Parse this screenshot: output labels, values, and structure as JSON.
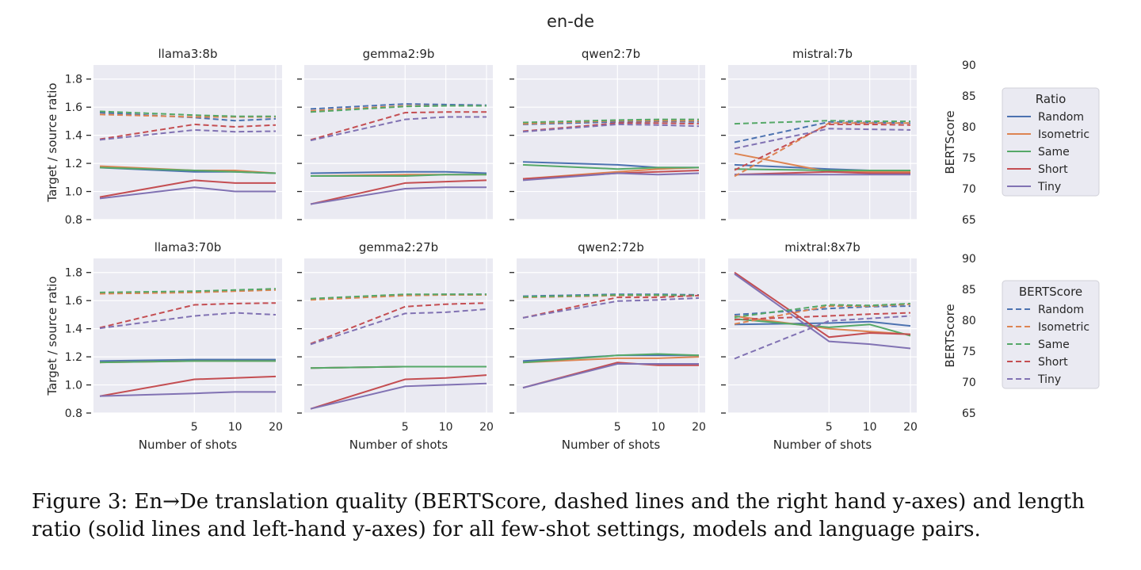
{
  "figure": {
    "suptitle": "en-de",
    "caption": "Figure 3: En→De translation quality (BERTScore, dashed lines and the right hand y-axes) and length ratio (solid lines and left-hand y-axes) for all few-shot settings, models and language pairs.",
    "legend_ratio_title": "Ratio",
    "legend_bert_title": "BERTScore",
    "legend_entries": [
      "Random",
      "Isometric",
      "Same",
      "Short",
      "Tiny"
    ],
    "colors": {
      "Random": "#4c72b0",
      "Isometric": "#dd8452",
      "Same": "#55a868",
      "Short": "#c44e52",
      "Tiny": "#8172b3"
    }
  },
  "chart_data": [
    {
      "type": "line",
      "title": "llama3:8b",
      "xlabel": "",
      "ylabel": "Target / source ratio",
      "y2label": "",
      "x": [
        1,
        5,
        10,
        20
      ],
      "xticks": [
        5,
        10,
        20
      ],
      "xscale": "log",
      "ylim": [
        0.8,
        1.9
      ],
      "yticks": [
        0.8,
        1.0,
        1.2,
        1.4,
        1.6,
        1.8
      ],
      "y2lim": [
        65,
        90
      ],
      "y2ticks": [],
      "series": [
        {
          "name": "Random",
          "axis": "ratio",
          "values": [
            1.17,
            1.14,
            1.14,
            1.13
          ]
        },
        {
          "name": "Isometric",
          "axis": "ratio",
          "values": [
            1.18,
            1.15,
            1.15,
            1.13
          ]
        },
        {
          "name": "Same",
          "axis": "ratio",
          "values": [
            1.17,
            1.15,
            1.14,
            1.13
          ]
        },
        {
          "name": "Short",
          "axis": "ratio",
          "values": [
            0.96,
            1.08,
            1.06,
            1.06
          ]
        },
        {
          "name": "Tiny",
          "axis": "ratio",
          "values": [
            0.95,
            1.03,
            1.0,
            1.0
          ]
        },
        {
          "name": "Random",
          "axis": "bert",
          "values": [
            82.3,
            81.5,
            81.0,
            81.3
          ]
        },
        {
          "name": "Isometric",
          "axis": "bert",
          "values": [
            82.0,
            81.6,
            81.6,
            81.6
          ]
        },
        {
          "name": "Same",
          "axis": "bert",
          "values": [
            82.5,
            81.9,
            81.7,
            81.7
          ]
        },
        {
          "name": "Short",
          "axis": "bert",
          "values": [
            78.0,
            80.4,
            80.0,
            80.3
          ]
        },
        {
          "name": "Tiny",
          "axis": "bert",
          "values": [
            77.9,
            79.5,
            79.2,
            79.3
          ]
        }
      ]
    },
    {
      "type": "line",
      "title": "gemma2:9b",
      "xlabel": "",
      "ylabel": "",
      "y2label": "",
      "x": [
        1,
        5,
        10,
        20
      ],
      "xticks": [
        5,
        10,
        20
      ],
      "xscale": "log",
      "ylim": [
        0.8,
        1.9
      ],
      "yticks": [
        0.8,
        1.0,
        1.2,
        1.4,
        1.6,
        1.8
      ],
      "y2lim": [
        65,
        90
      ],
      "y2ticks": [],
      "series": [
        {
          "name": "Random",
          "axis": "ratio",
          "values": [
            1.13,
            1.14,
            1.14,
            1.13
          ]
        },
        {
          "name": "Isometric",
          "axis": "ratio",
          "values": [
            1.11,
            1.12,
            1.12,
            1.12
          ]
        },
        {
          "name": "Same",
          "axis": "ratio",
          "values": [
            1.11,
            1.11,
            1.12,
            1.12
          ]
        },
        {
          "name": "Short",
          "axis": "ratio",
          "values": [
            0.91,
            1.06,
            1.07,
            1.08
          ]
        },
        {
          "name": "Tiny",
          "axis": "ratio",
          "values": [
            0.91,
            1.02,
            1.03,
            1.03
          ]
        },
        {
          "name": "Random",
          "axis": "bert",
          "values": [
            82.9,
            83.7,
            83.6,
            83.5
          ]
        },
        {
          "name": "Isometric",
          "axis": "bert",
          "values": [
            82.6,
            83.4,
            83.4,
            83.4
          ]
        },
        {
          "name": "Same",
          "axis": "bert",
          "values": [
            82.4,
            83.3,
            83.4,
            83.4
          ]
        },
        {
          "name": "Short",
          "axis": "bert",
          "values": [
            77.9,
            82.3,
            82.4,
            82.4
          ]
        },
        {
          "name": "Tiny",
          "axis": "bert",
          "values": [
            77.8,
            81.2,
            81.6,
            81.6
          ]
        }
      ]
    },
    {
      "type": "line",
      "title": "qwen2:7b",
      "xlabel": "",
      "ylabel": "",
      "y2label": "",
      "x": [
        1,
        5,
        10,
        20
      ],
      "xticks": [
        5,
        10,
        20
      ],
      "xscale": "log",
      "ylim": [
        0.8,
        1.9
      ],
      "yticks": [
        0.8,
        1.0,
        1.2,
        1.4,
        1.6,
        1.8
      ],
      "y2lim": [
        65,
        90
      ],
      "y2ticks": [],
      "series": [
        {
          "name": "Random",
          "axis": "ratio",
          "values": [
            1.21,
            1.19,
            1.17,
            1.17
          ]
        },
        {
          "name": "Isometric",
          "axis": "ratio",
          "values": [
            1.09,
            1.14,
            1.16,
            1.17
          ]
        },
        {
          "name": "Same",
          "axis": "ratio",
          "values": [
            1.19,
            1.16,
            1.17,
            1.17
          ]
        },
        {
          "name": "Short",
          "axis": "ratio",
          "values": [
            1.09,
            1.13,
            1.14,
            1.15
          ]
        },
        {
          "name": "Tiny",
          "axis": "ratio",
          "values": [
            1.08,
            1.13,
            1.12,
            1.13
          ]
        },
        {
          "name": "Random",
          "axis": "bert",
          "values": [
            80.4,
            80.8,
            80.9,
            80.8
          ]
        },
        {
          "name": "Isometric",
          "axis": "bert",
          "values": [
            80.5,
            81.0,
            81.0,
            81.0
          ]
        },
        {
          "name": "Same",
          "axis": "bert",
          "values": [
            80.7,
            81.1,
            81.2,
            81.2
          ]
        },
        {
          "name": "Short",
          "axis": "bert",
          "values": [
            79.3,
            80.6,
            80.6,
            80.5
          ]
        },
        {
          "name": "Tiny",
          "axis": "bert",
          "values": [
            79.2,
            80.4,
            80.3,
            80.1
          ]
        }
      ]
    },
    {
      "type": "line",
      "title": "mistral:7b",
      "xlabel": "",
      "ylabel": "",
      "y2label": "BERTScore",
      "x": [
        1,
        5,
        10,
        20
      ],
      "xticks": [
        5,
        10,
        20
      ],
      "xscale": "log",
      "ylim": [
        0.8,
        1.9
      ],
      "yticks": [
        0.8,
        1.0,
        1.2,
        1.4,
        1.6,
        1.8
      ],
      "y2lim": [
        65,
        90
      ],
      "y2ticks": [
        65,
        70,
        75,
        80,
        85,
        90
      ],
      "series": [
        {
          "name": "Random",
          "axis": "ratio",
          "values": [
            1.19,
            1.16,
            1.15,
            1.14
          ]
        },
        {
          "name": "Isometric",
          "axis": "ratio",
          "values": [
            1.27,
            1.14,
            1.14,
            1.14
          ]
        },
        {
          "name": "Same",
          "axis": "ratio",
          "values": [
            1.16,
            1.15,
            1.15,
            1.15
          ]
        },
        {
          "name": "Short",
          "axis": "ratio",
          "values": [
            1.12,
            1.14,
            1.13,
            1.13
          ]
        },
        {
          "name": "Tiny",
          "axis": "ratio",
          "values": [
            1.12,
            1.12,
            1.12,
            1.12
          ]
        },
        {
          "name": "Random",
          "axis": "bert",
          "values": [
            77.5,
            80.8,
            80.7,
            80.6
          ]
        },
        {
          "name": "Isometric",
          "axis": "bert",
          "values": [
            72.0,
            80.6,
            80.6,
            80.6
          ]
        },
        {
          "name": "Same",
          "axis": "bert",
          "values": [
            80.5,
            81.0,
            80.9,
            80.9
          ]
        },
        {
          "name": "Short",
          "axis": "bert",
          "values": [
            73.0,
            80.4,
            80.4,
            80.3
          ]
        },
        {
          "name": "Tiny",
          "axis": "bert",
          "values": [
            76.5,
            79.7,
            79.6,
            79.5
          ]
        }
      ]
    },
    {
      "type": "line",
      "title": "llama3:70b",
      "xlabel": "Number of shots",
      "ylabel": "Target / source ratio",
      "y2label": "",
      "x": [
        1,
        5,
        10,
        20
      ],
      "xticks": [
        5,
        10,
        20
      ],
      "xscale": "log",
      "ylim": [
        0.8,
        1.9
      ],
      "yticks": [
        0.8,
        1.0,
        1.2,
        1.4,
        1.6,
        1.8
      ],
      "y2lim": [
        65,
        90
      ],
      "y2ticks": [],
      "series": [
        {
          "name": "Random",
          "axis": "ratio",
          "values": [
            1.17,
            1.18,
            1.18,
            1.18
          ]
        },
        {
          "name": "Isometric",
          "axis": "ratio",
          "values": [
            1.16,
            1.17,
            1.17,
            1.17
          ]
        },
        {
          "name": "Same",
          "axis": "ratio",
          "values": [
            1.16,
            1.17,
            1.17,
            1.17
          ]
        },
        {
          "name": "Short",
          "axis": "ratio",
          "values": [
            0.92,
            1.04,
            1.05,
            1.06
          ]
        },
        {
          "name": "Tiny",
          "axis": "ratio",
          "values": [
            0.92,
            0.94,
            0.95,
            0.95
          ]
        },
        {
          "name": "Random",
          "axis": "bert",
          "values": [
            84.4,
            84.6,
            84.8,
            85.0
          ]
        },
        {
          "name": "Isometric",
          "axis": "bert",
          "values": [
            84.3,
            84.5,
            84.7,
            84.9
          ]
        },
        {
          "name": "Same",
          "axis": "bert",
          "values": [
            84.5,
            84.7,
            84.9,
            85.1
          ]
        },
        {
          "name": "Short",
          "axis": "bert",
          "values": [
            78.8,
            82.5,
            82.7,
            82.8
          ]
        },
        {
          "name": "Tiny",
          "axis": "bert",
          "values": [
            78.7,
            80.7,
            81.2,
            80.9
          ]
        }
      ]
    },
    {
      "type": "line",
      "title": "gemma2:27b",
      "xlabel": "Number of shots",
      "ylabel": "",
      "y2label": "",
      "x": [
        1,
        5,
        10,
        20
      ],
      "xticks": [
        5,
        10,
        20
      ],
      "xscale": "log",
      "ylim": [
        0.8,
        1.9
      ],
      "yticks": [
        0.8,
        1.0,
        1.2,
        1.4,
        1.6,
        1.8
      ],
      "y2lim": [
        65,
        90
      ],
      "y2ticks": [],
      "series": [
        {
          "name": "Random",
          "axis": "ratio",
          "values": [
            1.12,
            1.13,
            1.13,
            1.13
          ]
        },
        {
          "name": "Isometric",
          "axis": "ratio",
          "values": [
            1.12,
            1.13,
            1.13,
            1.13
          ]
        },
        {
          "name": "Same",
          "axis": "ratio",
          "values": [
            1.12,
            1.13,
            1.13,
            1.13
          ]
        },
        {
          "name": "Short",
          "axis": "ratio",
          "values": [
            0.83,
            1.04,
            1.05,
            1.07
          ]
        },
        {
          "name": "Tiny",
          "axis": "ratio",
          "values": [
            0.83,
            0.99,
            1.0,
            1.01
          ]
        },
        {
          "name": "Random",
          "axis": "bert",
          "values": [
            83.4,
            84.1,
            84.2,
            84.2
          ]
        },
        {
          "name": "Isometric",
          "axis": "bert",
          "values": [
            83.3,
            84.0,
            84.1,
            84.1
          ]
        },
        {
          "name": "Same",
          "axis": "bert",
          "values": [
            83.5,
            84.2,
            84.2,
            84.2
          ]
        },
        {
          "name": "Short",
          "axis": "bert",
          "values": [
            76.2,
            82.2,
            82.6,
            82.8
          ]
        },
        {
          "name": "Tiny",
          "axis": "bert",
          "values": [
            76.1,
            81.1,
            81.3,
            81.8
          ]
        }
      ]
    },
    {
      "type": "line",
      "title": "qwen2:72b",
      "xlabel": "Number of shots",
      "ylabel": "",
      "y2label": "",
      "x": [
        1,
        5,
        10,
        20
      ],
      "xticks": [
        5,
        10,
        20
      ],
      "xscale": "log",
      "ylim": [
        0.8,
        1.9
      ],
      "yticks": [
        0.8,
        1.0,
        1.2,
        1.4,
        1.6,
        1.8
      ],
      "y2lim": [
        65,
        90
      ],
      "y2ticks": [],
      "series": [
        {
          "name": "Random",
          "axis": "ratio",
          "values": [
            1.17,
            1.21,
            1.21,
            1.21
          ]
        },
        {
          "name": "Isometric",
          "axis": "ratio",
          "values": [
            1.16,
            1.19,
            1.19,
            1.2
          ]
        },
        {
          "name": "Same",
          "axis": "ratio",
          "values": [
            1.16,
            1.21,
            1.22,
            1.21
          ]
        },
        {
          "name": "Short",
          "axis": "ratio",
          "values": [
            0.98,
            1.16,
            1.14,
            1.14
          ]
        },
        {
          "name": "Tiny",
          "axis": "ratio",
          "values": [
            0.98,
            1.15,
            1.15,
            1.15
          ]
        },
        {
          "name": "Random",
          "axis": "bert",
          "values": [
            83.9,
            84.2,
            84.2,
            84.1
          ]
        },
        {
          "name": "Isometric",
          "axis": "bert",
          "values": [
            83.7,
            84.0,
            84.0,
            84.0
          ]
        },
        {
          "name": "Same",
          "axis": "bert",
          "values": [
            83.8,
            84.1,
            84.1,
            84.0
          ]
        },
        {
          "name": "Short",
          "axis": "bert",
          "values": [
            80.4,
            83.7,
            83.7,
            84.0
          ]
        },
        {
          "name": "Tiny",
          "axis": "bert",
          "values": [
            80.4,
            83.1,
            83.3,
            83.6
          ]
        }
      ]
    },
    {
      "type": "line",
      "title": "mixtral:8x7b",
      "xlabel": "Number of shots",
      "ylabel": "",
      "y2label": "BERTScore",
      "x": [
        1,
        5,
        10,
        20
      ],
      "xticks": [
        5,
        10,
        20
      ],
      "xscale": "log",
      "ylim": [
        0.8,
        1.9
      ],
      "yticks": [
        0.8,
        1.0,
        1.2,
        1.4,
        1.6,
        1.8
      ],
      "y2lim": [
        65,
        90
      ],
      "y2ticks": [
        65,
        70,
        75,
        80,
        85,
        90
      ],
      "series": [
        {
          "name": "Random",
          "axis": "ratio",
          "values": [
            1.43,
            1.44,
            1.45,
            1.42
          ]
        },
        {
          "name": "Isometric",
          "axis": "ratio",
          "values": [
            1.49,
            1.4,
            1.38,
            1.36
          ]
        },
        {
          "name": "Same",
          "axis": "ratio",
          "values": [
            1.47,
            1.41,
            1.43,
            1.35
          ]
        },
        {
          "name": "Short",
          "axis": "ratio",
          "values": [
            1.8,
            1.34,
            1.37,
            1.36
          ]
        },
        {
          "name": "Tiny",
          "axis": "ratio",
          "values": [
            1.79,
            1.31,
            1.29,
            1.26
          ]
        },
        {
          "name": "Random",
          "axis": "bert",
          "values": [
            80.9,
            81.9,
            82.2,
            82.3
          ]
        },
        {
          "name": "Isometric",
          "axis": "bert",
          "values": [
            79.4,
            82.3,
            82.3,
            82.6
          ]
        },
        {
          "name": "Same",
          "axis": "bert",
          "values": [
            80.5,
            82.5,
            82.4,
            82.7
          ]
        },
        {
          "name": "Short",
          "axis": "bert",
          "values": [
            80.1,
            80.7,
            81.0,
            81.2
          ]
        },
        {
          "name": "Tiny",
          "axis": "bert",
          "values": [
            73.8,
            79.9,
            80.3,
            80.7
          ]
        }
      ]
    }
  ]
}
